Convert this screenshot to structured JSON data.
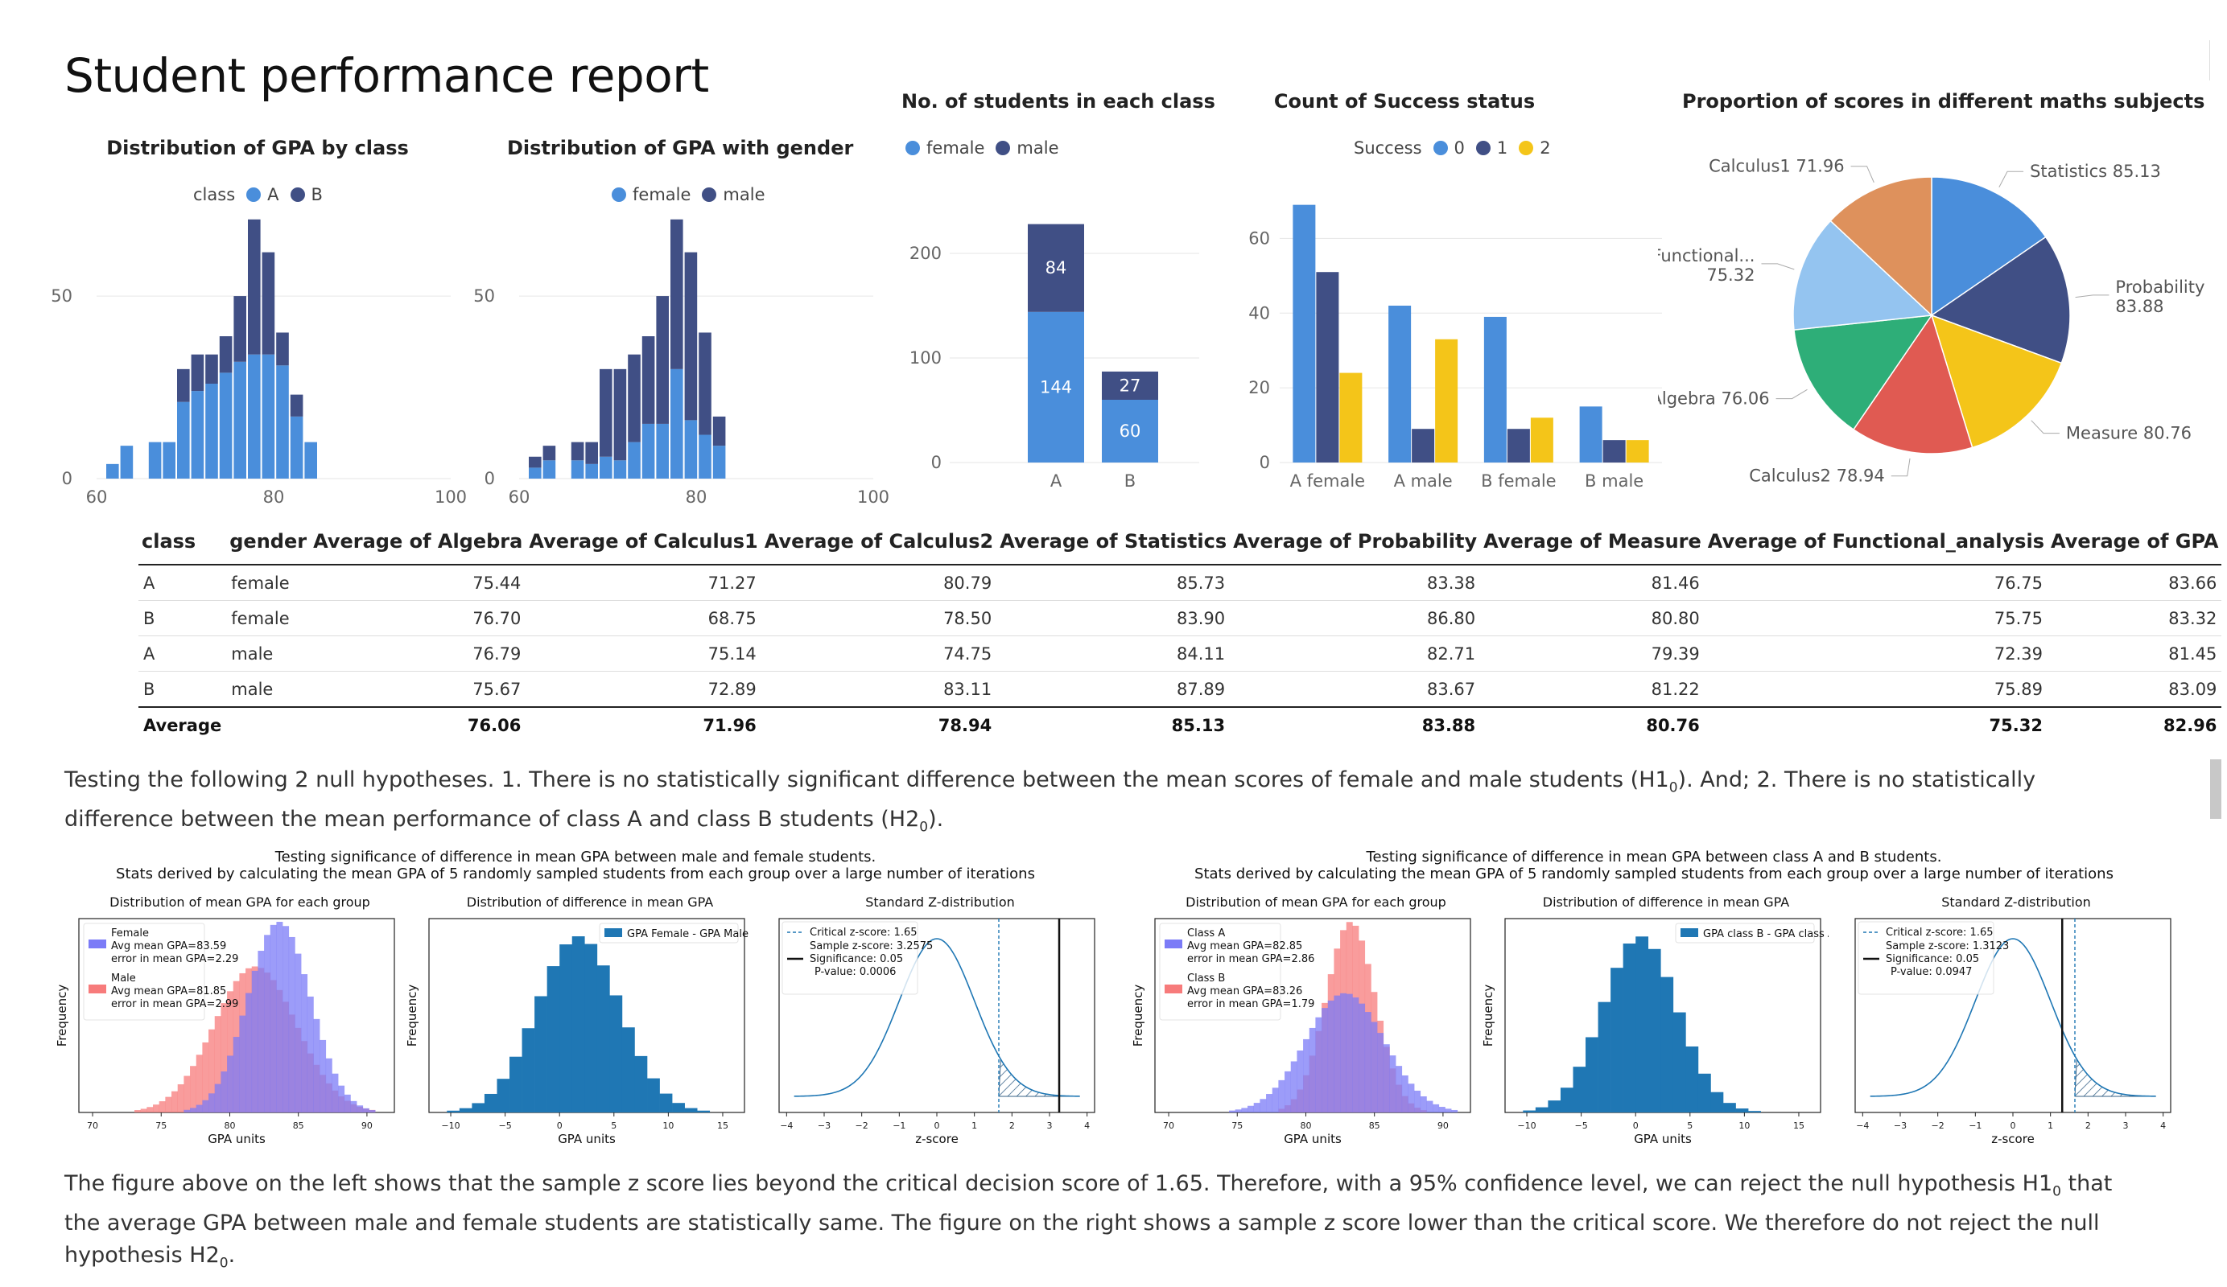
{
  "page": {
    "title": "Student performance report",
    "intro_text": "Testing the following 2 null hypotheses. 1. There is no statistically significant difference between the mean scores of female and male students (H1",
    "intro_sub1": "0",
    "intro_mid": "). And; 2. There is no statistically difference between the mean performance of class A and class B students (H2",
    "intro_sub2": "0",
    "intro_end": ").",
    "conclusion_text": "The figure above on the left shows that the sample z score lies beyond the critical decision score of 1.65. Therefore, with a 95% confidence level, we can reject the null hypothesis H1",
    "conclusion_sub1": "0",
    "conclusion_mid": " that the average GPA between male and female students are statistically same. The figure on the right shows a sample z score lower than the critical score. We therefore do not reject the null hypothesis H2",
    "conclusion_sub2": "0",
    "conclusion_end": "."
  },
  "colors": {
    "light_blue": "#4A8EDB",
    "dark_blue": "#404F85",
    "yellow": "#F4C519",
    "mpl_blue": "#1F77B4",
    "hist_blue": "#7B7BF7",
    "hist_red": "#F77B7B"
  },
  "chart_data": [
    {
      "type": "bar",
      "id": "gpa_by_class",
      "title": "Distribution of GPA by class",
      "legend_title": "class",
      "legend_items": [
        "A",
        "B"
      ],
      "xticks": [
        "60",
        "80",
        "100"
      ],
      "yticks": [
        "0",
        "50"
      ],
      "xlim": [
        60,
        100
      ],
      "ylim": [
        0,
        65
      ],
      "bin_start": 61,
      "bin_width": 1.6,
      "series": [
        {
          "name": "A",
          "values": [
            4,
            9,
            0,
            10,
            10,
            21,
            24,
            26,
            29,
            32,
            34,
            34,
            31,
            17,
            10
          ]
        },
        {
          "name": "B",
          "values": [
            0,
            0,
            0,
            0,
            0,
            9,
            10,
            8,
            10,
            18,
            37,
            28,
            9,
            6,
            0
          ]
        }
      ]
    },
    {
      "type": "bar",
      "id": "gpa_with_gender",
      "title": "Distribution of GPA with gender",
      "legend_items": [
        "female",
        "male"
      ],
      "xticks": [
        "60",
        "80",
        "100"
      ],
      "yticks": [
        "0",
        "50"
      ],
      "xlim": [
        60,
        100
      ],
      "ylim": [
        0,
        65
      ],
      "bin_start": 61,
      "bin_width": 1.6,
      "series": [
        {
          "name": "female",
          "values": [
            3,
            5,
            0,
            5,
            4,
            6,
            5,
            10,
            15,
            15,
            30,
            16,
            12,
            9,
            0
          ]
        },
        {
          "name": "male",
          "values": [
            3,
            4,
            0,
            5,
            6,
            24,
            25,
            24,
            24,
            35,
            41,
            46,
            28,
            8,
            0
          ]
        }
      ]
    },
    {
      "type": "bar",
      "id": "students_per_class",
      "title": "No. of students in each class",
      "legend_items": [
        "female",
        "male"
      ],
      "categories": [
        "A",
        "B"
      ],
      "yticks": [
        "0",
        "100",
        "200"
      ],
      "ylim": [
        0,
        250
      ],
      "series": [
        {
          "name": "female",
          "values": [
            144,
            60
          ],
          "labels": [
            "144",
            "60"
          ]
        },
        {
          "name": "male",
          "values": [
            84,
            27
          ],
          "labels": [
            "84",
            "27"
          ]
        }
      ]
    },
    {
      "type": "bar",
      "id": "success_status",
      "title": "Count of Success status",
      "legend_title": "Success",
      "legend_items": [
        "0",
        "1",
        "2"
      ],
      "categories": [
        "A female",
        "A male",
        "B female",
        "B male"
      ],
      "yticks": [
        "0",
        "20",
        "40",
        "60"
      ],
      "ylim": [
        0,
        70
      ],
      "series": [
        {
          "name": "0",
          "values": [
            69,
            42,
            39,
            15
          ]
        },
        {
          "name": "1",
          "values": [
            51,
            9,
            9,
            6
          ]
        },
        {
          "name": "2",
          "values": [
            24,
            33,
            12,
            6
          ]
        }
      ]
    },
    {
      "type": "pie",
      "id": "maths_proportion",
      "title": "Proportion of scores in different maths subjects",
      "slices": [
        {
          "label": "Statistics 85.13",
          "value": 85.13,
          "color": "#4A8EDB"
        },
        {
          "label": "Probability 83.88",
          "value": 83.88,
          "color": "#404F85"
        },
        {
          "label": "Measure 80.76",
          "value": 80.76,
          "color": "#F4C519"
        },
        {
          "label": "Calculus2 78.94",
          "value": 78.94,
          "color": "#E05A52"
        },
        {
          "label": "Algebra 76.06",
          "value": 76.06,
          "color": "#2EAE78"
        },
        {
          "label": "Functional... 75.32",
          "value": 75.32,
          "color": "#94C4F0"
        },
        {
          "label": "Calculus1 71.96",
          "value": 71.96,
          "color": "#DE915C"
        }
      ]
    },
    {
      "type": "table",
      "id": "summary_table",
      "columns": [
        "class",
        "gender",
        "Average of Algebra",
        "Average of Calculus1",
        "Average of Calculus2",
        "Average of Statistics",
        "Average of Probability",
        "Average of Measure",
        "Average of Functional_analysis",
        "Average of GPA"
      ],
      "rows": [
        [
          "A",
          "female",
          "75.44",
          "71.27",
          "80.79",
          "85.73",
          "83.38",
          "81.46",
          "76.75",
          "83.66"
        ],
        [
          "B",
          "female",
          "76.70",
          "68.75",
          "78.50",
          "83.90",
          "86.80",
          "80.80",
          "75.75",
          "83.32"
        ],
        [
          "A",
          "male",
          "76.79",
          "75.14",
          "74.75",
          "84.11",
          "82.71",
          "79.39",
          "72.39",
          "81.45"
        ],
        [
          "B",
          "male",
          "75.67",
          "72.89",
          "83.11",
          "87.89",
          "83.67",
          "81.22",
          "75.89",
          "83.09"
        ]
      ],
      "total_row": [
        "Average",
        "",
        "76.06",
        "71.96",
        "78.94",
        "85.13",
        "83.88",
        "80.76",
        "75.32",
        "82.96"
      ]
    }
  ],
  "hypothesis_tests": [
    {
      "id": "gender_test",
      "title": "Testing significance of difference in mean GPA between male and female students.",
      "subtitle": "Stats derived by calculating the mean GPA of 5 randomly sampled students from each group over a large number of iterations",
      "panel1": {
        "title": "Distribution of mean GPA for each group",
        "xlabel": "GPA units",
        "ylabel": "Frequency",
        "xticks": [
          "70",
          "75",
          "80",
          "85",
          "90"
        ],
        "xlim": [
          69,
          92
        ],
        "legend": [
          {
            "name": "Female",
            "line1": "Avg mean GPA=83.59",
            "line2": "error in mean GPA=2.29",
            "color": "#7B7BF7"
          },
          {
            "name": "Male",
            "line1": "Avg mean GPA=81.85",
            "line2": "error in mean GPA=2.99",
            "color": "#F77B7B"
          }
        ],
        "dist_a_mean": 83.59,
        "dist_a_sd": 2.29,
        "dist_b_mean": 81.85,
        "dist_b_sd": 2.99
      },
      "panel2": {
        "title": "Distribution of difference in mean GPA",
        "xlabel": "GPA units",
        "ylabel": "Frequency",
        "xticks": [
          "−10",
          "−5",
          "0",
          "5",
          "10",
          "15"
        ],
        "xlim": [
          -12,
          17
        ],
        "legend": "GPA Female - GPA Male",
        "mean": 1.74,
        "sd": 3.8
      },
      "panel3": {
        "title": "Standard Z-distribution",
        "xlabel": "z-score",
        "xticks": [
          "−4",
          "−3",
          "−2",
          "−1",
          "0",
          "1",
          "2",
          "3",
          "4"
        ],
        "xlim": [
          -4.2,
          4.2
        ],
        "critical_label": "Critical z-score: 1.65",
        "sample_label": "Sample z-score: 3.2575",
        "significance_label": "Significance: 0.05",
        "pvalue_label": "P-value: 0.0006",
        "critical_z": 1.65,
        "sample_z": 3.2575
      }
    },
    {
      "id": "class_test",
      "title": "Testing significance of difference in mean GPA between class A and B students.",
      "subtitle": "Stats derived by calculating the mean GPA of 5 randomly sampled students from each group over a large number of iterations",
      "panel1": {
        "title": "Distribution of mean GPA for each group",
        "xlabel": "GPA units",
        "ylabel": "Frequency",
        "xticks": [
          "70",
          "75",
          "80",
          "85",
          "90"
        ],
        "xlim": [
          69,
          92
        ],
        "legend": [
          {
            "name": "Class A",
            "line1": "Avg mean GPA=82.85",
            "line2": "error in mean GPA=2.86",
            "color": "#7B7BF7"
          },
          {
            "name": "Class B",
            "line1": "Avg mean GPA=83.26",
            "line2": "error in mean GPA=1.79",
            "color": "#F77B7B"
          }
        ],
        "dist_a_mean": 82.85,
        "dist_a_sd": 2.86,
        "dist_b_mean": 83.26,
        "dist_b_sd": 1.79
      },
      "panel2": {
        "title": "Distribution of difference in mean GPA",
        "xlabel": "GPA units",
        "ylabel": "Frequency",
        "xticks": [
          "−10",
          "−5",
          "0",
          "5",
          "10",
          "15"
        ],
        "xlim": [
          -12,
          17
        ],
        "legend": "GPA class B - GPA class A",
        "mean": 0.41,
        "sd": 3.4
      },
      "panel3": {
        "title": "Standard Z-distribution",
        "xlabel": "z-score",
        "xticks": [
          "−4",
          "−3",
          "−2",
          "−1",
          "0",
          "1",
          "2",
          "3",
          "4"
        ],
        "xlim": [
          -4.2,
          4.2
        ],
        "critical_label": "Critical z-score: 1.65",
        "sample_label": "Sample z-score: 1.3123",
        "significance_label": "Significance: 0.05",
        "pvalue_label": "P-value: 0.0947",
        "critical_z": 1.65,
        "sample_z": 1.3123
      }
    }
  ]
}
